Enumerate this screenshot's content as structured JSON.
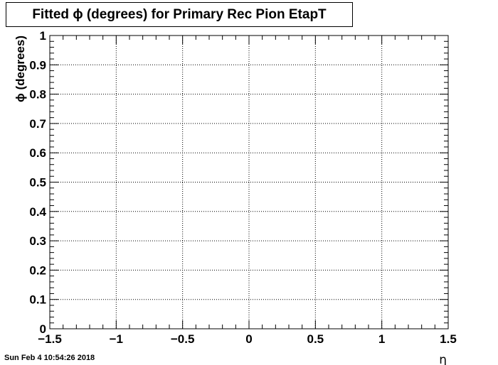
{
  "title": "Fitted ϕ (degrees) for Primary Rec Pion EtapT",
  "timestamp": "Sun Feb  4 10:54:26 2018",
  "chart_data": {
    "type": "scatter",
    "title": "Fitted ϕ (degrees) for Primary Rec Pion EtapT",
    "xlabel": "η",
    "ylabel": "ϕ (degrees)",
    "xlim": [
      -1.5,
      1.5
    ],
    "ylim": [
      0,
      1
    ],
    "x_ticks": [
      {
        "value": -1.5,
        "label": "−1.5"
      },
      {
        "value": -1.0,
        "label": "−1"
      },
      {
        "value": -0.5,
        "label": "−0.5"
      },
      {
        "value": 0.0,
        "label": "0"
      },
      {
        "value": 0.5,
        "label": "0.5"
      },
      {
        "value": 1.0,
        "label": "1"
      },
      {
        "value": 1.5,
        "label": "1.5"
      }
    ],
    "y_ticks": [
      {
        "value": 0.0,
        "label": "0"
      },
      {
        "value": 0.1,
        "label": "0.1"
      },
      {
        "value": 0.2,
        "label": "0.2"
      },
      {
        "value": 0.3,
        "label": "0.3"
      },
      {
        "value": 0.4,
        "label": "0.4"
      },
      {
        "value": 0.5,
        "label": "0.5"
      },
      {
        "value": 0.6,
        "label": "0.6"
      },
      {
        "value": 0.7,
        "label": "0.7"
      },
      {
        "value": 0.8,
        "label": "0.8"
      },
      {
        "value": 0.9,
        "label": "0.9"
      },
      {
        "value": 1.0,
        "label": "1"
      }
    ],
    "grid": true,
    "series": []
  }
}
